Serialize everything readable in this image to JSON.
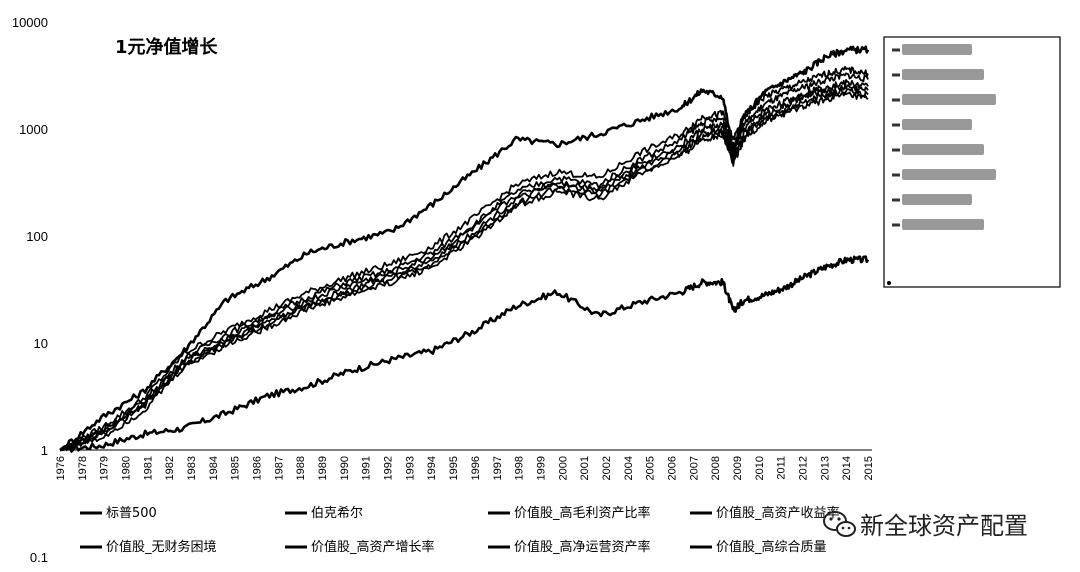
{
  "chart_data": {
    "type": "line",
    "title": "1元净值增长",
    "xlabel": "",
    "ylabel": "",
    "yscale": "log",
    "ylim": [
      0.1,
      10000
    ],
    "yticks": [
      "0.1",
      "1",
      "10",
      "100",
      "1000",
      "10000"
    ],
    "xlim": [
      1976,
      2015
    ],
    "xticks": [
      "1976",
      "1978",
      "1979",
      "1980",
      "1981",
      "1982",
      "1983",
      "1984",
      "1985",
      "1986",
      "1987",
      "1988",
      "1989",
      "1990",
      "1991",
      "1992",
      "1993",
      "1994",
      "1995",
      "1996",
      "1997",
      "1998",
      "1999",
      "2000",
      "2001",
      "2002",
      "2004",
      "2005",
      "2006",
      "2007",
      "2008",
      "2009",
      "2010",
      "2011",
      "2012",
      "2013",
      "2014",
      "2015"
    ],
    "legend_position": "bottom",
    "grid": false,
    "series": [
      {
        "name": "标普500",
        "x": [
          1976,
          1978,
          1980,
          1982,
          1984,
          1986,
          1988,
          1990,
          1992,
          1994,
          1996,
          1998,
          2000,
          2002,
          2004,
          2006,
          2007,
          2008,
          2008.5,
          2009,
          2010,
          2011,
          2012,
          2013,
          2014,
          2015
        ],
        "values": [
          1,
          1.1,
          1.4,
          1.6,
          2.2,
          3.2,
          4.0,
          5.5,
          7.0,
          8.5,
          13,
          22,
          30,
          18,
          24,
          30,
          37,
          37,
          20,
          25,
          28,
          33,
          42,
          52,
          60,
          60
        ]
      },
      {
        "name": "伯克希尔",
        "x": [
          1976,
          1978,
          1980,
          1982,
          1984,
          1986,
          1988,
          1990,
          1992,
          1994,
          1996,
          1998,
          2000,
          2002,
          2004,
          2006,
          2007,
          2008,
          2008.5,
          2009,
          2010,
          2011,
          2012,
          2013,
          2014,
          2015
        ],
        "values": [
          1,
          2.0,
          3.5,
          8.5,
          25,
          40,
          70,
          90,
          110,
          200,
          400,
          800,
          720,
          900,
          1200,
          1600,
          2300,
          2000,
          600,
          1300,
          2200,
          2800,
          3500,
          4800,
          5500,
          5500
        ]
      },
      {
        "name": "价值股_高毛利资产比率",
        "x": [
          1976,
          1978,
          1980,
          1982,
          1984,
          1986,
          1988,
          1990,
          1992,
          1994,
          1996,
          1998,
          2000,
          2002,
          2004,
          2006,
          2007,
          2008,
          2008.5,
          2009,
          2010,
          2011,
          2012,
          2013,
          2014,
          2015
        ],
        "values": [
          1,
          1.6,
          3.0,
          8.0,
          13,
          20,
          30,
          42,
          55,
          80,
          150,
          300,
          400,
          350,
          600,
          900,
          1300,
          1400,
          800,
          1300,
          2000,
          2400,
          2800,
          3300,
          3600,
          3300
        ]
      },
      {
        "name": "价值股_高资产收益率",
        "x": [
          1976,
          1978,
          1980,
          1982,
          1984,
          1986,
          1988,
          1990,
          1992,
          1994,
          1996,
          1998,
          2000,
          2002,
          2004,
          2006,
          2007,
          2008,
          2008.5,
          2009,
          2010,
          2011,
          2012,
          2013,
          2014,
          2015
        ],
        "values": [
          1,
          1.5,
          2.8,
          7.2,
          12,
          18,
          27,
          38,
          48,
          70,
          130,
          260,
          350,
          300,
          520,
          800,
          1150,
          1250,
          700,
          1100,
          1700,
          2100,
          2500,
          2900,
          3200,
          2900
        ]
      },
      {
        "name": "价值股_无财务困境",
        "x": [
          1976,
          1978,
          1980,
          1982,
          1984,
          1986,
          1988,
          1990,
          1992,
          1994,
          1996,
          1998,
          2000,
          2002,
          2004,
          2006,
          2007,
          2008,
          2008.5,
          2009,
          2010,
          2011,
          2012,
          2013,
          2014,
          2015
        ],
        "values": [
          1,
          1.5,
          2.7,
          6.8,
          11,
          17,
          25,
          35,
          45,
          65,
          120,
          240,
          320,
          280,
          480,
          700,
          1000,
          1100,
          620,
          1000,
          1500,
          1800,
          2200,
          2500,
          2700,
          2500
        ]
      },
      {
        "name": "价值股_高资产增长率",
        "x": [
          1976,
          1978,
          1980,
          1982,
          1984,
          1986,
          1988,
          1990,
          1992,
          1994,
          1996,
          1998,
          2000,
          2002,
          2004,
          2006,
          2007,
          2008,
          2008.5,
          2009,
          2010,
          2011,
          2012,
          2013,
          2014,
          2015
        ],
        "values": [
          1,
          1.4,
          2.6,
          6.5,
          10.5,
          16,
          23,
          32,
          42,
          60,
          110,
          220,
          300,
          260,
          440,
          650,
          900,
          1000,
          560,
          900,
          1350,
          1650,
          2000,
          2300,
          2500,
          2300
        ]
      },
      {
        "name": "价值股_高净运营资产率",
        "x": [
          1976,
          1978,
          1980,
          1982,
          1984,
          1986,
          1988,
          1990,
          1992,
          1994,
          1996,
          1998,
          2000,
          2002,
          2004,
          2006,
          2007,
          2008,
          2008.5,
          2009,
          2010,
          2011,
          2012,
          2013,
          2014,
          2015
        ],
        "values": [
          1,
          1.4,
          2.5,
          6.2,
          10,
          15,
          22,
          30,
          40,
          56,
          100,
          200,
          280,
          240,
          400,
          600,
          850,
          950,
          520,
          850,
          1250,
          1500,
          1800,
          2100,
          2300,
          2100
        ]
      },
      {
        "name": "价值股_高综合质量",
        "x": [
          1976,
          1978,
          1980,
          1982,
          1984,
          1986,
          1988,
          1990,
          1992,
          1994,
          1996,
          1998,
          2000,
          2002,
          2004,
          2006,
          2007,
          2008,
          2008.5,
          2009,
          2010,
          2011,
          2012,
          2013,
          2014,
          2015
        ],
        "values": [
          1,
          1.3,
          2.3,
          6.0,
          9.5,
          14,
          21,
          28,
          37,
          52,
          95,
          190,
          260,
          220,
          380,
          560,
          800,
          880,
          480,
          800,
          1150,
          1400,
          1650,
          1900,
          2100,
          1900
        ]
      }
    ],
    "legend_box_entries": [
      "",
      "",
      "",
      "",
      "",
      "",
      "",
      ""
    ]
  },
  "watermark": {
    "text": "新全球资产配置",
    "icon": "wechat-icon"
  },
  "colors": {
    "line": "#000000",
    "background": "#ffffff"
  }
}
